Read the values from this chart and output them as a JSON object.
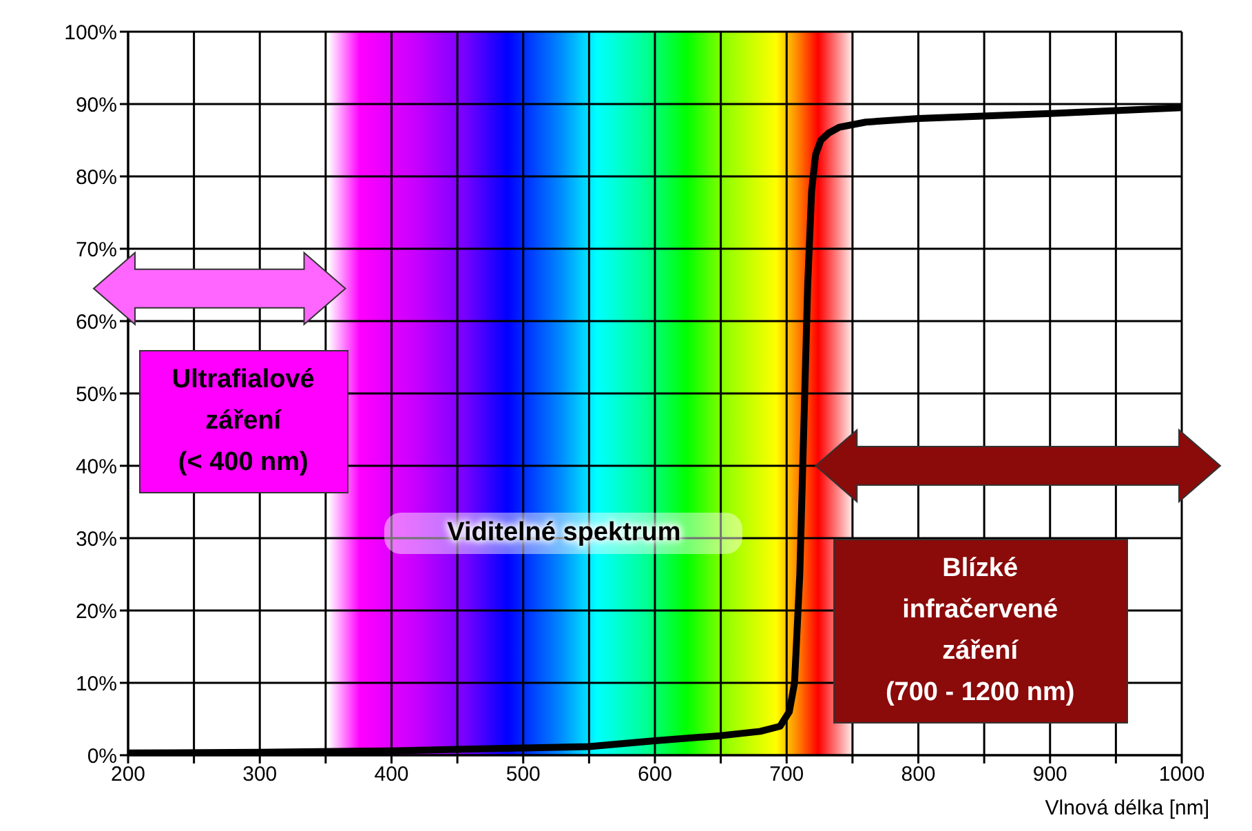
{
  "chart_data": {
    "type": "line",
    "xlabel": "Vlnová délka [nm]",
    "x": [
      200,
      300,
      400,
      450,
      500,
      550,
      600,
      650,
      680,
      695,
      702,
      706,
      710,
      713,
      716,
      719,
      722,
      726,
      732,
      740,
      760,
      800,
      900,
      1000
    ],
    "series": [
      {
        "color": "#000000",
        "values": [
          0.3,
          0.4,
          0.6,
          0.8,
          1.0,
          1.2,
          2.0,
          2.7,
          3.3,
          4.0,
          6,
          10,
          25,
          45,
          65,
          78,
          83,
          85,
          86,
          86.8,
          87.5,
          88,
          88.7,
          89.5
        ]
      }
    ],
    "xlim": [
      200,
      1000
    ],
    "xticks": [
      200,
      {
        "value": 250,
        "label": null
      },
      300,
      {
        "value": 350,
        "label": null
      },
      400,
      {
        "value": 450,
        "label": null
      },
      500,
      {
        "value": 550,
        "label": null
      },
      600,
      {
        "value": 650,
        "label": null
      },
      700,
      {
        "value": 750,
        "label": null
      },
      800,
      {
        "value": 850,
        "label": null
      },
      900,
      {
        "value": 950,
        "label": null
      },
      1000
    ],
    "ylim": [
      0,
      100
    ],
    "yticks": [
      {
        "value": 0,
        "label": "0%"
      },
      {
        "value": 10,
        "label": "10%"
      },
      {
        "value": 20,
        "label": "20%"
      },
      {
        "value": 30,
        "label": "30%"
      },
      {
        "value": 40,
        "label": "40%"
      },
      {
        "value": 50,
        "label": "50%"
      },
      {
        "value": 60,
        "label": "60%"
      },
      {
        "value": 70,
        "label": "70%"
      },
      {
        "value": 80,
        "label": "80%"
      },
      {
        "value": 90,
        "label": "90%"
      },
      {
        "value": 100,
        "label": "100%"
      }
    ],
    "grid": true,
    "marker": "none",
    "line_style": "solid",
    "annotations": [
      "Ultrafialové\nzáření\n(< 400 nm)",
      "Viditelné spektrum",
      "Blízké\ninfračervené\nzáření\n(700 - 1200 nm)"
    ]
  }
}
